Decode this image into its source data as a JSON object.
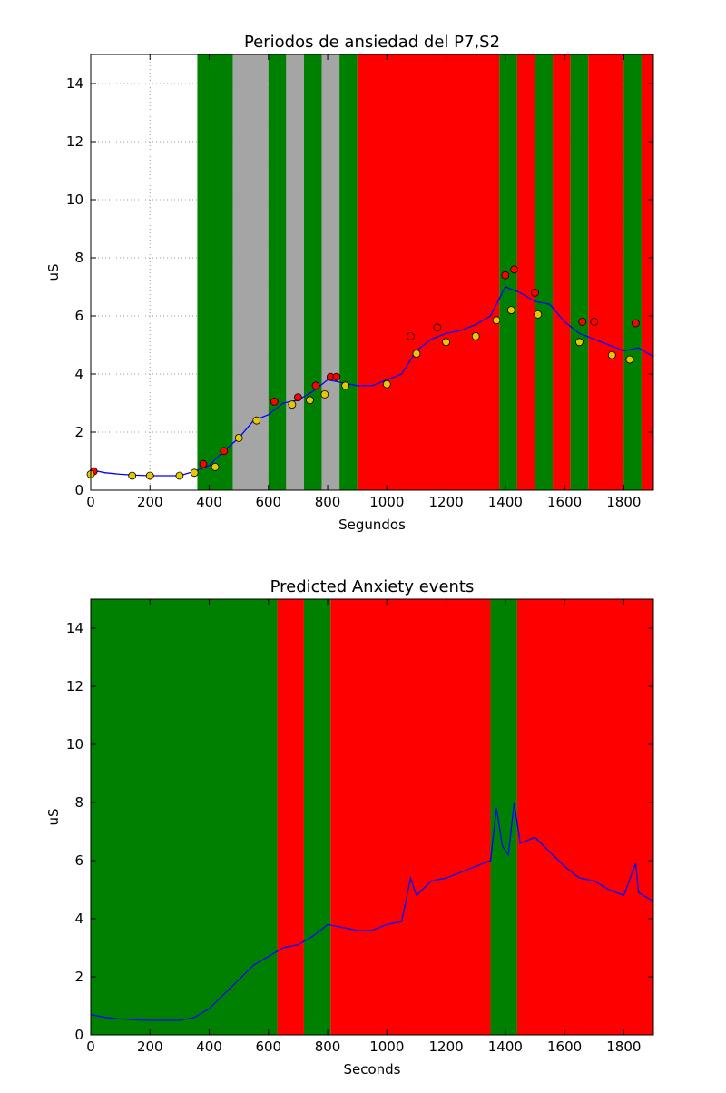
{
  "chart_data": [
    {
      "type": "line",
      "title": "Periodos de ansiedad del P7,S2",
      "xlabel": "Segundos",
      "ylabel": "uS",
      "xlim": [
        0,
        1900
      ],
      "xticks": [
        0,
        200,
        400,
        600,
        800,
        1000,
        1200,
        1400,
        1600,
        1800
      ],
      "ylim": [
        0,
        15
      ],
      "yticks": [
        0,
        2,
        4,
        6,
        8,
        10,
        12,
        14
      ],
      "grid": true,
      "spans": [
        {
          "start": 360,
          "end": 480,
          "color": "#008000"
        },
        {
          "start": 480,
          "end": 600,
          "color": "#a5a5a5"
        },
        {
          "start": 600,
          "end": 660,
          "color": "#008000"
        },
        {
          "start": 660,
          "end": 720,
          "color": "#a5a5a5"
        },
        {
          "start": 720,
          "end": 780,
          "color": "#008000"
        },
        {
          "start": 780,
          "end": 840,
          "color": "#a5a5a5"
        },
        {
          "start": 840,
          "end": 900,
          "color": "#008000"
        },
        {
          "start": 900,
          "end": 1380,
          "color": "#ff0000"
        },
        {
          "start": 1380,
          "end": 1440,
          "color": "#008000"
        },
        {
          "start": 1440,
          "end": 1500,
          "color": "#ff0000"
        },
        {
          "start": 1500,
          "end": 1560,
          "color": "#008000"
        },
        {
          "start": 1560,
          "end": 1620,
          "color": "#ff0000"
        },
        {
          "start": 1620,
          "end": 1680,
          "color": "#008000"
        },
        {
          "start": 1680,
          "end": 1800,
          "color": "#ff0000"
        },
        {
          "start": 1800,
          "end": 1860,
          "color": "#008000"
        },
        {
          "start": 1860,
          "end": 1900,
          "color": "#ff0000"
        }
      ],
      "series": [
        {
          "type": "line",
          "color": "#0000ff",
          "x": [
            0,
            50,
            100,
            150,
            200,
            250,
            300,
            350,
            400,
            450,
            500,
            550,
            600,
            650,
            700,
            750,
            800,
            850,
            900,
            950,
            1000,
            1050,
            1100,
            1150,
            1200,
            1250,
            1300,
            1350,
            1400,
            1450,
            1500,
            1550,
            1600,
            1650,
            1700,
            1750,
            1800,
            1850,
            1900
          ],
          "values": [
            0.7,
            0.6,
            0.55,
            0.52,
            0.5,
            0.5,
            0.5,
            0.65,
            0.85,
            1.35,
            1.8,
            2.4,
            2.6,
            3.0,
            3.1,
            3.4,
            3.8,
            3.7,
            3.6,
            3.6,
            3.8,
            4.0,
            4.8,
            5.2,
            5.4,
            5.5,
            5.7,
            6.0,
            7.0,
            6.8,
            6.5,
            6.4,
            5.8,
            5.4,
            5.2,
            5.0,
            4.8,
            4.9,
            4.6
          ]
        },
        {
          "type": "scatter",
          "color": "#ff0000",
          "x": [
            10,
            380,
            450,
            620,
            700,
            760,
            810,
            830,
            1080,
            1170,
            1400,
            1430,
            1500,
            1660,
            1700,
            1840
          ],
          "values": [
            0.65,
            0.9,
            1.35,
            3.05,
            3.2,
            3.6,
            3.9,
            3.9,
            5.3,
            5.6,
            7.4,
            7.6,
            6.8,
            5.8,
            5.8,
            5.75
          ]
        },
        {
          "type": "scatter",
          "color": "#e6c800",
          "x": [
            0,
            140,
            200,
            300,
            350,
            420,
            500,
            560,
            680,
            740,
            790,
            860,
            1000,
            1100,
            1200,
            1300,
            1370,
            1420,
            1510,
            1650,
            1760,
            1820
          ],
          "values": [
            0.55,
            0.5,
            0.5,
            0.5,
            0.6,
            0.8,
            1.8,
            2.4,
            2.95,
            3.1,
            3.3,
            3.6,
            3.65,
            4.7,
            5.1,
            5.3,
            5.85,
            6.2,
            6.05,
            5.1,
            4.65,
            4.5
          ]
        }
      ]
    },
    {
      "type": "line",
      "title": "Predicted Anxiety events",
      "xlabel": "Seconds",
      "ylabel": "uS",
      "xlim": [
        0,
        1900
      ],
      "xticks": [
        0,
        200,
        400,
        600,
        800,
        1000,
        1200,
        1400,
        1600,
        1800
      ],
      "ylim": [
        0,
        15
      ],
      "yticks": [
        0,
        2,
        4,
        6,
        8,
        10,
        12,
        14
      ],
      "grid": false,
      "spans": [
        {
          "start": 0,
          "end": 630,
          "color": "#008000"
        },
        {
          "start": 630,
          "end": 720,
          "color": "#ff0000"
        },
        {
          "start": 720,
          "end": 810,
          "color": "#008000"
        },
        {
          "start": 810,
          "end": 1350,
          "color": "#ff0000"
        },
        {
          "start": 1350,
          "end": 1440,
          "color": "#008000"
        },
        {
          "start": 1440,
          "end": 1900,
          "color": "#ff0000"
        }
      ],
      "series": [
        {
          "type": "line",
          "color": "#0000ff",
          "x": [
            0,
            50,
            100,
            150,
            200,
            250,
            300,
            350,
            400,
            450,
            500,
            550,
            600,
            650,
            700,
            750,
            800,
            850,
            900,
            950,
            1000,
            1050,
            1080,
            1100,
            1150,
            1200,
            1250,
            1300,
            1350,
            1370,
            1390,
            1410,
            1430,
            1450,
            1500,
            1550,
            1600,
            1650,
            1700,
            1750,
            1800,
            1840,
            1850,
            1900
          ],
          "values": [
            0.7,
            0.6,
            0.55,
            0.52,
            0.5,
            0.5,
            0.5,
            0.6,
            0.9,
            1.4,
            1.9,
            2.4,
            2.7,
            3.0,
            3.1,
            3.4,
            3.8,
            3.7,
            3.6,
            3.6,
            3.8,
            3.9,
            5.4,
            4.8,
            5.3,
            5.4,
            5.6,
            5.8,
            6.0,
            7.8,
            6.5,
            6.2,
            8.0,
            6.6,
            6.8,
            6.3,
            5.8,
            5.4,
            5.3,
            5.0,
            4.8,
            5.9,
            4.9,
            4.6
          ]
        }
      ]
    }
  ]
}
